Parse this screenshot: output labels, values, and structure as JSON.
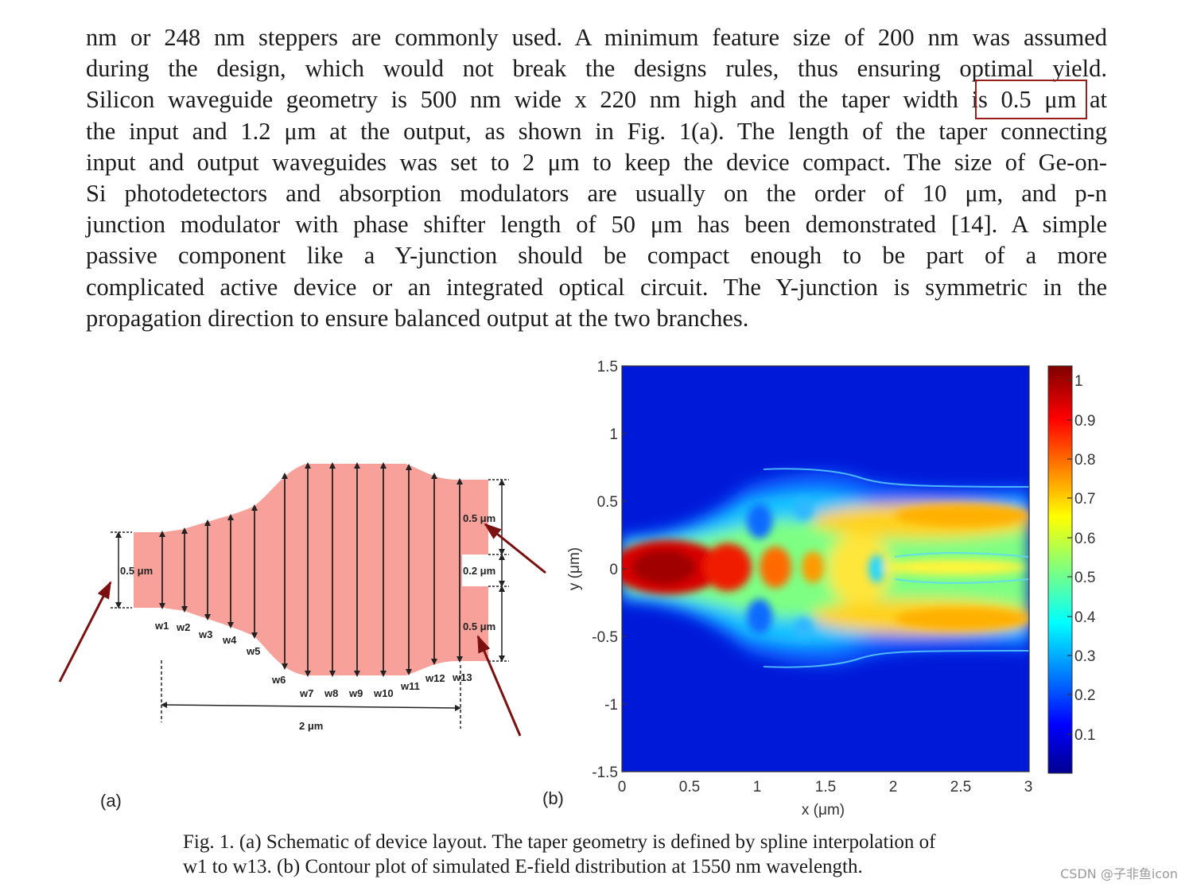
{
  "paragraph": {
    "lines": [
      "nm or 248 nm steppers are commonly used. A minimum feature size of 200 nm was assumed",
      "during the design, which would not break the designs rules, thus ensuring optimal yield.",
      "Silicon waveguide geometry is 500 nm wide x 220 nm high and the taper width is 0.5 μm at",
      "the input and 1.2 μm at the output, as shown in Fig. 1(a). The length of the taper connecting",
      "input and output waveguides was set to 2 μm to keep the device compact. The size of Ge-on-",
      "Si photodetectors and absorption modulators are usually on the order of 10 μm, and p-n",
      "junction modulator with phase shifter length of 50 μm has been demonstrated [14]. A simple",
      "passive component like a Y-junction should be compact enough to be part of a more",
      "complicated active device or an integrated optical circuit. The Y-junction is symmetric in the",
      "propagation direction to ensure balanced output at the two branches."
    ],
    "highlight": "is 0.5 μm"
  },
  "figure_a": {
    "panel_label": "(a)",
    "input_width_label": "0.5 μm",
    "output_upper_label": "0.5 μm",
    "gap_label": "0.2 μm",
    "output_lower_label": "0.5 μm",
    "length_label": "2 μm",
    "width_labels": [
      "w1",
      "w2",
      "w3",
      "w4",
      "w5",
      "w6",
      "w7",
      "w8",
      "w9",
      "w10",
      "w11",
      "w12",
      "w13"
    ],
    "colors": {
      "waveguide": "#f7a19a",
      "arrow": "#7a1010"
    }
  },
  "figure_b": {
    "panel_label": "(b)",
    "colorbar_ticks": [
      "1",
      "0.9",
      "0.8",
      "0.7",
      "0.6",
      "0.5",
      "0.4",
      "0.3",
      "0.2",
      "0.1"
    ]
  },
  "chart_data": {
    "type": "heatmap",
    "title": "",
    "xlabel": "x (μm)",
    "ylabel": "y (μm)",
    "x_ticks": [
      "0",
      "0.5",
      "1",
      "1.5",
      "2",
      "2.5",
      "3"
    ],
    "y_ticks": [
      "1.5",
      "1",
      "0.5",
      "0",
      "-0.5",
      "-1",
      "-1.5"
    ],
    "xlim": [
      0,
      3
    ],
    "ylim": [
      -1.5,
      1.5
    ],
    "colorbar": {
      "range": [
        0,
        1.05
      ],
      "ticks": [
        1,
        0.9,
        0.8,
        0.7,
        0.6,
        0.5,
        0.4,
        0.3,
        0.2,
        0.1
      ],
      "colormap": "jet"
    }
  },
  "caption": {
    "line1": "Fig. 1. (a) Schematic of device layout. The taper geometry is defined by spline interpolation of",
    "line2": "w1 to w13. (b) Contour plot of simulated E-field distribution at 1550 nm wavelength."
  },
  "watermark": "CSDN @子非鱼icon"
}
